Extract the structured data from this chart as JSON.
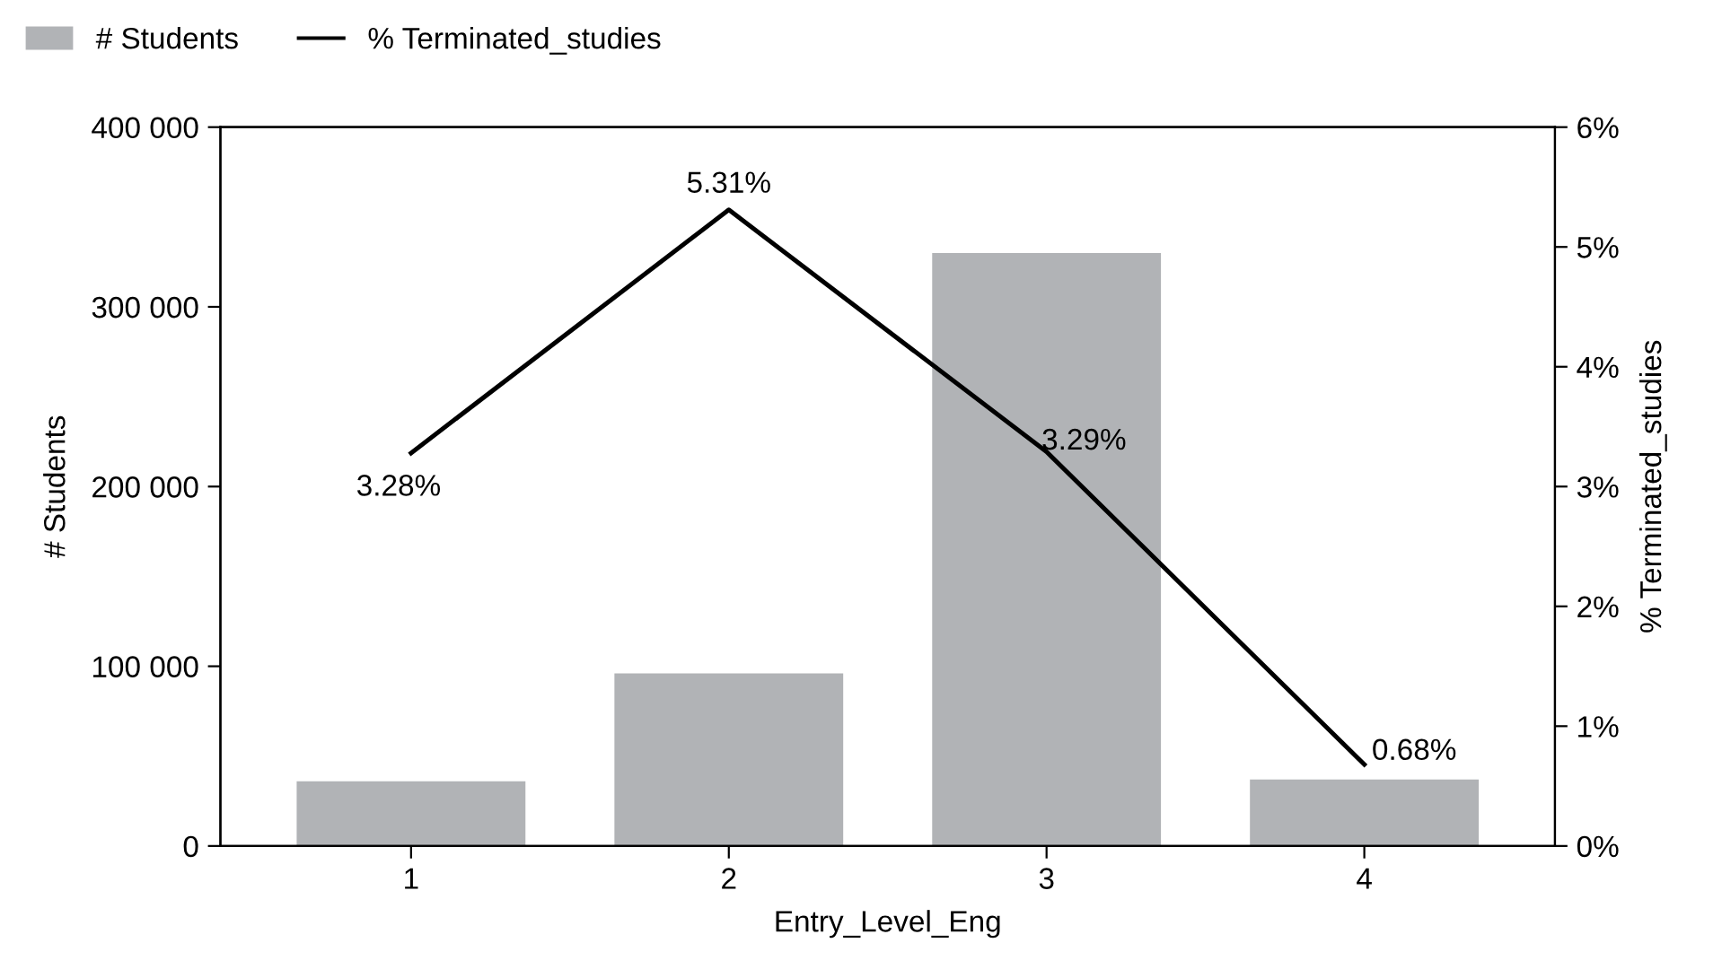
{
  "chart_data": {
    "type": "bar",
    "categories": [
      "1",
      "2",
      "3",
      "4"
    ],
    "xlabel": "Entry_Level_Eng",
    "ylabel": "# Students",
    "y2label": "% Terminated_studies",
    "series": [
      {
        "name": "# Students",
        "color": "#b1b3b6",
        "values": [
          36000,
          96000,
          330000,
          37000
        ]
      },
      {
        "name": "% Terminated_studies",
        "type": "line",
        "axis": "y2",
        "color": "#000000",
        "values": [
          3.28,
          5.31,
          3.29,
          0.68
        ],
        "value_labels": [
          "3.28%",
          "5.31%",
          "3.29%",
          "0.68%"
        ]
      }
    ],
    "ylim": [
      0,
      400000
    ],
    "yticks": [
      {
        "value": 0,
        "label": "0"
      },
      {
        "value": 100000,
        "label": "100 000"
      },
      {
        "value": 200000,
        "label": "200 000"
      },
      {
        "value": 300000,
        "label": "300 000"
      },
      {
        "value": 400000,
        "label": "400 000"
      }
    ],
    "y2lim": [
      0,
      6
    ],
    "y2ticks": [
      {
        "value": 0,
        "label": "0%"
      },
      {
        "value": 1,
        "label": "1%"
      },
      {
        "value": 2,
        "label": "2%"
      },
      {
        "value": 3,
        "label": "3%"
      },
      {
        "value": 4,
        "label": "4%"
      },
      {
        "value": 5,
        "label": "5%"
      },
      {
        "value": 6,
        "label": "6%"
      }
    ],
    "grid": false,
    "legend": "top left",
    "marker": "none",
    "line_style": "solid"
  }
}
